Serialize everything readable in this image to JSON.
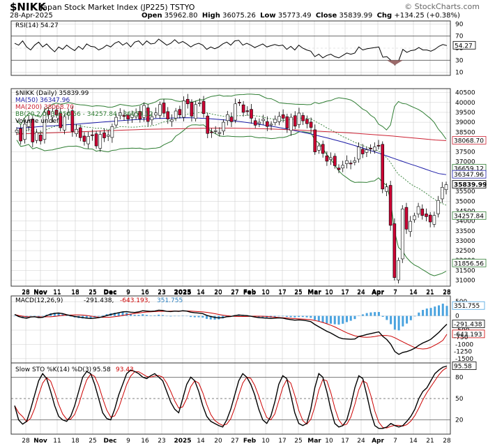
{
  "header": {
    "symbol": "$NIKK",
    "name": "Japan Stock Market Index (JP225)  TSTYO",
    "date": "28-Apr-2025",
    "open_label": "Open",
    "open": "35962.80",
    "high_label": "High",
    "high": "36075.26",
    "low_label": "Low",
    "low": "35773.49",
    "close_label": "Close",
    "close": "35839.99",
    "chg_label": "Chg",
    "chg": "+134.25 (+0.38%)",
    "watermark": "© StockCharts.com"
  },
  "colors": {
    "up": "#ffffff",
    "down": "#cc0033",
    "ma50": "#1a1aa6",
    "ma200": "#cc2233",
    "bb": "#2e7d32",
    "bbmid": "#2e7d32",
    "rsi": "#000000",
    "macd": "#000000",
    "signal": "#cc0000",
    "hist": "#4aa3df",
    "stok": "#000000",
    "stod": "#cc0000",
    "grid": "#cccccc"
  },
  "x_axis_labels": [
    "28",
    "Nov",
    "11",
    "18",
    "25",
    "Dec",
    "9",
    "16",
    "23",
    "2025",
    "14",
    "20",
    "27",
    "Feb",
    "10",
    "17",
    "25",
    "Mar",
    "10",
    "17",
    "24",
    "Apr",
    "7",
    "14",
    "21",
    "28"
  ],
  "rsi_panel": {
    "legend": "RSI(14) 54.27",
    "ticks": [
      "90",
      "70",
      "50",
      "30",
      "10"
    ],
    "last_label": "54.27"
  },
  "price_panel": {
    "legend": [
      {
        "text": "$NIKK (Daily) 35839.99",
        "color": "#000000"
      },
      {
        "text": "MA(50) 36347.96",
        "color": "#1a1aa6"
      },
      {
        "text": "MA(200) 38068.70",
        "color": "#cc2233"
      },
      {
        "text": "BB(20,2.0) 31856.56 - 34257.84 - 36659.12",
        "color": "#2e7d32"
      },
      {
        "text": "Volume undef",
        "color": "#000000"
      }
    ],
    "ticks": [
      "40500",
      "40000",
      "39500",
      "39000",
      "38500",
      "37500",
      "37000",
      "35500",
      "35000",
      "34500",
      "34000",
      "33500",
      "33000",
      "32500",
      "32000",
      "31500",
      "31000"
    ],
    "labels": [
      {
        "text": "38068.70",
        "cls": "red"
      },
      {
        "text": "36659.12",
        "cls": "green"
      },
      {
        "text": "36347.96",
        "cls": "blue"
      },
      {
        "text": "35839.99",
        "cls": "black"
      },
      {
        "text": "34257.84",
        "cls": "green"
      },
      {
        "text": "31856.56",
        "cls": "green"
      }
    ]
  },
  "macd_panel": {
    "legend_name": "MACD(12,26,9)",
    "legend_vals": [
      "-291.438",
      "-643.193",
      "351.755"
    ],
    "ticks": [
      "500",
      "0",
      "-500",
      "-1000",
      "-1500"
    ],
    "labels": [
      "351.755",
      "-291.438",
      "-643.193",
      "-750",
      "-1250"
    ]
  },
  "sto_panel": {
    "legend_name": "Slow STO %K(14) %D(3)",
    "legend_vals": [
      "95.58",
      "93.43"
    ],
    "ticks": [
      "80",
      "50",
      "20"
    ],
    "labels": [
      "95.58",
      "80",
      "50",
      "20"
    ]
  },
  "chart_data": {
    "type": "candlestick",
    "title": "$NIKK Japan Stock Market Index (JP225) Daily",
    "date_range": [
      "2024-10-28",
      "2025-04-28"
    ],
    "last": {
      "open": 35962.8,
      "high": 36075.26,
      "low": 35773.49,
      "close": 35839.99
    },
    "closes": [
      38600,
      38050,
      38900,
      39081,
      38000,
      38474,
      38053,
      39500,
      39381,
      39533,
      39376,
      38721,
      39282,
      39500,
      38535,
      38642,
      38220,
      38026,
      38283,
      38334,
      37800,
      38380,
      38208,
      38349,
      38780,
      39249,
      39480,
      39292,
      39160,
      39395,
      39470,
      39160,
      39849,
      39038,
      39281,
      39470,
      39895,
      39457,
      39161,
      39130,
      39568,
      39372,
      40082,
      39931,
      39307,
      39895,
      39981,
      39437,
      38431,
      38474,
      38572,
      38474,
      39000,
      39382,
      39028,
      39931,
      40000,
      39500,
      39572,
      39200,
      38850,
      39000,
      39150,
      38787,
      38900,
      39149,
      39300,
      39200,
      38700,
      39250,
      38800,
      39462,
      39070,
      38928,
      38737,
      37500,
      37800,
      37418,
      37028,
      37200,
      36800,
      36600,
      36819,
      37053,
      36887,
      37052,
      37750,
      37396,
      37608,
      37677,
      37751,
      37800,
      35617,
      35725,
      33780,
      31136,
      32000,
      34609,
      33585,
      33982,
      34267,
      34730,
      34280,
      34220,
      33950,
      34280,
      35039,
      35705,
      35840
    ],
    "ma50": [
      38700,
      38720,
      38740,
      38780,
      38800,
      38820,
      38850,
      38880,
      38900,
      38930,
      38960,
      38990,
      39020,
      39050,
      39080,
      39100,
      39130,
      39150,
      39170,
      39190,
      39200,
      39210,
      39220,
      39230,
      39220,
      39200,
      39180,
      39150,
      39120,
      39080,
      39040,
      38990,
      38940,
      38880,
      38820,
      38760,
      38690,
      38620,
      38540,
      38460,
      38380,
      38290,
      38200,
      38100,
      38000,
      37890,
      37780,
      37660,
      37540,
      37420,
      37290,
      37160,
      37030,
      36900,
      36780,
      36650,
      36520,
      36400,
      36347
    ],
    "ma200": [
      38400,
      38420,
      38440,
      38460,
      38480,
      38500,
      38520,
      38540,
      38560,
      38580,
      38600,
      38620,
      38640,
      38650,
      38660,
      38670,
      38680,
      38690,
      38700,
      38700,
      38700,
      38690,
      38680,
      38670,
      38650,
      38630,
      38610,
      38580,
      38550,
      38520,
      38490,
      38460,
      38420,
      38380,
      38340,
      38300,
      38250,
      38200,
      38150,
      38100,
      38068.7
    ],
    "bb_upper": 36659.12,
    "bb_mid": 34257.84,
    "bb_lower": 31856.56,
    "rsi_last": 54.27,
    "macd_last": -291.438,
    "signal_last": -643.193,
    "hist_last": 351.755,
    "sto_k_last": 95.58,
    "sto_d_last": 93.43
  }
}
